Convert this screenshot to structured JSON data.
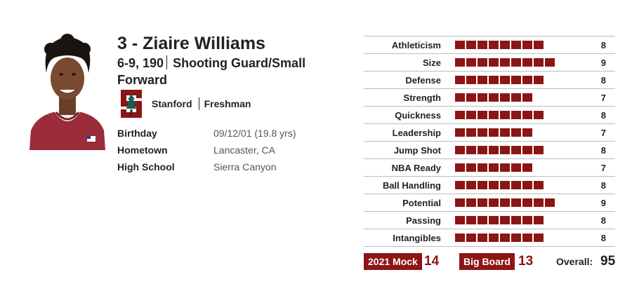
{
  "player": {
    "name": "3 - Ziaire Williams",
    "measurements": "6-9, 190",
    "position": "Shooting Guard/Small Forward",
    "school": "Stanford",
    "class_year": "Freshman"
  },
  "info": [
    {
      "label": "Birthday",
      "value": "09/12/01 (19.8 yrs)"
    },
    {
      "label": "Hometown",
      "value": "Lancaster, CA"
    },
    {
      "label": "High School",
      "value": "Sierra Canyon"
    }
  ],
  "ratings": [
    {
      "label": "Athleticism",
      "value": 8
    },
    {
      "label": "Size",
      "value": 9
    },
    {
      "label": "Defense",
      "value": 8
    },
    {
      "label": "Strength",
      "value": 7
    },
    {
      "label": "Quickness",
      "value": 8
    },
    {
      "label": "Leadership",
      "value": 7
    },
    {
      "label": "Jump Shot",
      "value": 8
    },
    {
      "label": "NBA Ready",
      "value": 7
    },
    {
      "label": "Ball Handling",
      "value": 8
    },
    {
      "label": "Potential",
      "value": 9
    },
    {
      "label": "Passing",
      "value": 8
    },
    {
      "label": "Intangibles",
      "value": 8
    }
  ],
  "footer": {
    "mock_label": "2021 Mock",
    "mock_value": "14",
    "bigboard_label": "Big Board",
    "bigboard_value": "13",
    "overall_label": "Overall:",
    "overall_value": "95"
  },
  "colors": {
    "accent": "#8c1515"
  }
}
